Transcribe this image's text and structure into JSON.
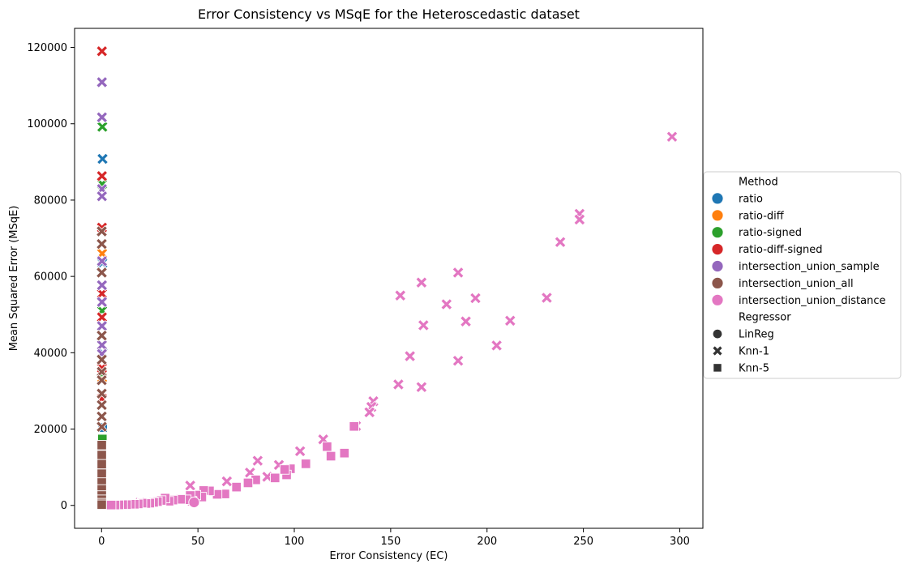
{
  "chart_data": {
    "type": "scatter",
    "title": "Error Consistency vs MSqE for the Heteroscedastic dataset",
    "xlabel": "Error Consistency (EC)",
    "ylabel": "Mean Squared Error (MSqE)",
    "xlim": [
      -14,
      312
    ],
    "ylim": [
      -6000,
      125000
    ],
    "x_ticks": [
      0,
      50,
      100,
      150,
      200,
      250,
      300
    ],
    "y_ticks": [
      0,
      20000,
      40000,
      60000,
      80000,
      100000,
      120000
    ],
    "grid": false,
    "legend": {
      "placement": "right",
      "method_title": "Method",
      "regressor_title": "Regressor"
    },
    "methods": [
      {
        "name": "ratio",
        "color": "#1f77b4"
      },
      {
        "name": "ratio-diff",
        "color": "#ff7f0e"
      },
      {
        "name": "ratio-signed",
        "color": "#2ca02c"
      },
      {
        "name": "ratio-diff-signed",
        "color": "#d62728"
      },
      {
        "name": "intersection_union_sample",
        "color": "#9467bd"
      },
      {
        "name": "intersection_union_all",
        "color": "#8c564b"
      },
      {
        "name": "intersection_union_distance",
        "color": "#e377c2"
      }
    ],
    "regressors": [
      {
        "name": "LinReg",
        "marker": "circle"
      },
      {
        "name": "Knn-1",
        "marker": "x"
      },
      {
        "name": "Knn-5",
        "marker": "square"
      }
    ],
    "series": [
      {
        "method": "ratio",
        "regressor": "Knn-1",
        "points": [
          [
            0.5,
            90800
          ],
          [
            0.4,
            63500
          ],
          [
            0.4,
            40000
          ]
        ]
      },
      {
        "method": "ratio",
        "regressor": "Knn-5",
        "points": [
          [
            0.6,
            20400
          ],
          [
            0.4,
            9000
          ]
        ]
      },
      {
        "method": "ratio-diff",
        "regressor": "Knn-1",
        "points": [
          [
            0.3,
            66000
          ],
          [
            0.3,
            33500
          ]
        ]
      },
      {
        "method": "ratio-signed",
        "regressor": "Knn-1",
        "points": [
          [
            0.4,
            99200
          ],
          [
            0.3,
            84200
          ],
          [
            0.3,
            51000
          ],
          [
            0.3,
            34500
          ]
        ]
      },
      {
        "method": "ratio-signed",
        "regressor": "Knn-5",
        "points": [
          [
            0.4,
            17400
          ],
          [
            0.3,
            7000
          ]
        ]
      },
      {
        "method": "ratio-diff-signed",
        "regressor": "Knn-1",
        "points": [
          [
            0.2,
            119000
          ],
          [
            0.2,
            86300
          ],
          [
            0.2,
            72800
          ],
          [
            0.2,
            61000
          ],
          [
            0.2,
            55500
          ],
          [
            0.2,
            49300
          ],
          [
            0.2,
            36000
          ],
          [
            0.2,
            28000
          ]
        ]
      },
      {
        "method": "intersection_union_sample",
        "regressor": "Knn-1",
        "points": [
          [
            0.2,
            110900
          ],
          [
            0.2,
            101700
          ],
          [
            0.2,
            82900
          ],
          [
            0.2,
            81000
          ],
          [
            0.2,
            64000
          ],
          [
            0.2,
            57700
          ],
          [
            0.2,
            53300
          ],
          [
            0.2,
            47000
          ],
          [
            0.2,
            42000
          ],
          [
            0.2,
            39700
          ]
        ]
      },
      {
        "method": "intersection_union_all",
        "regressor": "Knn-1",
        "points": [
          [
            0.1,
            71800
          ],
          [
            0.1,
            68500
          ],
          [
            0.1,
            61000
          ],
          [
            0.1,
            44500
          ],
          [
            0.1,
            38200
          ],
          [
            0.1,
            35000
          ],
          [
            0.1,
            32800
          ],
          [
            0.1,
            29300
          ],
          [
            0.1,
            26300
          ],
          [
            0.1,
            23300
          ],
          [
            0.1,
            20600
          ]
        ]
      },
      {
        "method": "intersection_union_all",
        "regressor": "Knn-5",
        "points": [
          [
            0.1,
            15800
          ],
          [
            0.1,
            13200
          ],
          [
            0.1,
            10800
          ],
          [
            0.1,
            8300
          ],
          [
            0.1,
            6000
          ],
          [
            0.1,
            4200
          ],
          [
            0.1,
            2600
          ],
          [
            0.1,
            1500
          ],
          [
            0.1,
            600
          ],
          [
            0.1,
            200
          ]
        ]
      },
      {
        "method": "intersection_union_distance",
        "regressor": "Knn-1",
        "points": [
          [
            296,
            96600
          ],
          [
            248,
            76400
          ],
          [
            248,
            74900
          ],
          [
            238,
            69000
          ],
          [
            231,
            54400
          ],
          [
            212,
            48400
          ],
          [
            205,
            41900
          ],
          [
            194,
            54300
          ],
          [
            189,
            48200
          ],
          [
            185,
            61000
          ],
          [
            185,
            37900
          ],
          [
            179,
            52700
          ],
          [
            167,
            47200
          ],
          [
            166,
            58400
          ],
          [
            166,
            31000
          ],
          [
            160,
            39100
          ],
          [
            155,
            55000
          ],
          [
            154,
            31700
          ],
          [
            141,
            27300
          ],
          [
            140,
            25800
          ],
          [
            139,
            24400
          ],
          [
            132,
            20800
          ],
          [
            115,
            17300
          ],
          [
            103,
            14200
          ],
          [
            92,
            10600
          ],
          [
            86,
            7500
          ],
          [
            81,
            11700
          ],
          [
            77,
            8600
          ],
          [
            65,
            6300
          ],
          [
            46,
            5200
          ],
          [
            32,
            1300
          ],
          [
            20,
            700
          ]
        ]
      },
      {
        "method": "intersection_union_distance",
        "regressor": "Knn-5",
        "points": [
          [
            131,
            20700
          ],
          [
            126,
            13700
          ],
          [
            119,
            12900
          ],
          [
            117,
            15400
          ],
          [
            106,
            10900
          ],
          [
            98,
            9600
          ],
          [
            96,
            8000
          ],
          [
            95,
            9400
          ],
          [
            90,
            7200
          ],
          [
            80,
            6700
          ],
          [
            76,
            5900
          ],
          [
            70,
            4800
          ],
          [
            64,
            3000
          ],
          [
            60,
            2900
          ],
          [
            56,
            3800
          ],
          [
            53,
            3900
          ],
          [
            52,
            2200
          ],
          [
            49,
            2700
          ],
          [
            47,
            1100
          ],
          [
            46,
            2600
          ],
          [
            44,
            1500
          ],
          [
            41,
            1600
          ],
          [
            37,
            1400
          ],
          [
            35,
            1100
          ],
          [
            33,
            1900
          ],
          [
            31,
            1300
          ],
          [
            29,
            1000
          ],
          [
            27,
            800
          ],
          [
            25,
            600
          ],
          [
            23,
            500
          ],
          [
            21,
            600
          ],
          [
            19,
            400
          ],
          [
            17,
            300
          ],
          [
            15,
            300
          ],
          [
            13,
            200
          ],
          [
            11,
            200
          ],
          [
            9,
            150
          ],
          [
            7,
            100
          ],
          [
            5,
            100
          ]
        ]
      },
      {
        "method": "intersection_union_distance",
        "regressor": "LinReg",
        "points": [
          [
            48,
            800
          ]
        ]
      }
    ]
  }
}
